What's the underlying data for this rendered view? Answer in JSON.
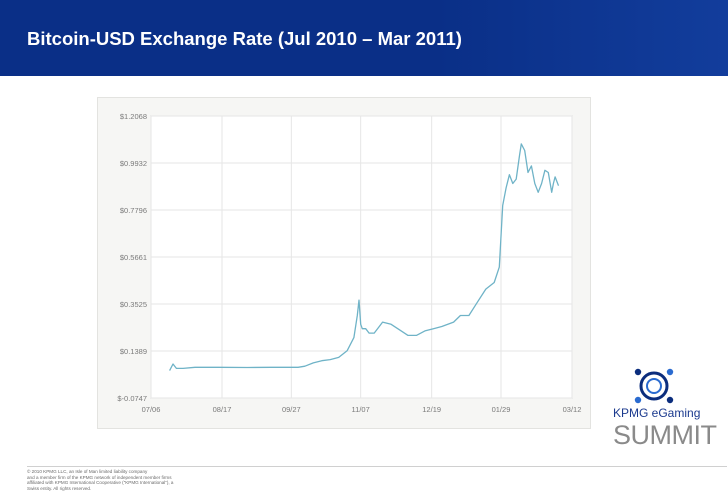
{
  "header": {
    "title": "Bitcoin-USD Exchange Rate (Jul 2010 – Mar 2011)"
  },
  "chart_data": {
    "type": "line",
    "title": "",
    "xlabel": "",
    "ylabel": "",
    "y_tick_labels": [
      "$1.2068",
      "$0.9932",
      "$0.7796",
      "$0.5661",
      "$0.3525",
      "$0.1389",
      "$-0.0747"
    ],
    "y_ticks": [
      1.2068,
      0.9932,
      0.7796,
      0.5661,
      0.3525,
      0.1389,
      -0.0747
    ],
    "x_tick_labels": [
      "07/06",
      "08/17",
      "09/27",
      "11/07",
      "12/19",
      "01/29",
      "03/12"
    ],
    "x_ticks": [
      "2010-07-06",
      "2010-08-17",
      "2010-09-27",
      "2010-11-07",
      "2010-12-19",
      "2011-01-29",
      "2011-03-12"
    ],
    "ylim": [
      -0.0747,
      1.2068
    ],
    "xlim": [
      "2010-07-06",
      "2011-03-12"
    ],
    "grid": true,
    "line_color": "#6fb3c7",
    "series": [
      {
        "x": [
          "2010-07-17",
          "2010-07-19",
          "2010-07-21",
          "2010-07-25",
          "2010-08-01",
          "2010-08-15",
          "2010-09-01",
          "2010-09-15",
          "2010-10-01",
          "2010-10-05",
          "2010-10-10",
          "2010-10-15",
          "2010-10-20",
          "2010-10-25",
          "2010-10-30",
          "2010-11-03",
          "2010-11-05",
          "2010-11-06",
          "2010-11-07",
          "2010-11-08",
          "2010-11-10",
          "2010-11-12",
          "2010-11-15",
          "2010-11-20",
          "2010-11-25",
          "2010-12-01",
          "2010-12-05",
          "2010-12-10",
          "2010-12-15",
          "2010-12-20",
          "2010-12-25",
          "2011-01-01",
          "2011-01-05",
          "2011-01-10",
          "2011-01-15",
          "2011-01-20",
          "2011-01-25",
          "2011-01-28",
          "2011-01-30",
          "2011-02-01",
          "2011-02-03",
          "2011-02-05",
          "2011-02-07",
          "2011-02-09",
          "2011-02-10",
          "2011-02-12",
          "2011-02-14",
          "2011-02-16",
          "2011-02-18",
          "2011-02-20",
          "2011-02-22",
          "2011-02-24",
          "2011-02-26",
          "2011-02-28",
          "2011-03-01",
          "2011-03-02",
          "2011-03-04"
        ],
        "values": [
          0.05,
          0.08,
          0.06,
          0.06,
          0.065,
          0.065,
          0.064,
          0.065,
          0.065,
          0.07,
          0.085,
          0.095,
          0.1,
          0.11,
          0.14,
          0.2,
          0.3,
          0.37,
          0.26,
          0.24,
          0.24,
          0.22,
          0.22,
          0.27,
          0.26,
          0.23,
          0.21,
          0.21,
          0.23,
          0.24,
          0.25,
          0.27,
          0.3,
          0.3,
          0.36,
          0.42,
          0.45,
          0.52,
          0.8,
          0.88,
          0.94,
          0.9,
          0.92,
          1.03,
          1.08,
          1.05,
          0.95,
          0.98,
          0.9,
          0.86,
          0.9,
          0.96,
          0.95,
          0.86,
          0.9,
          0.93,
          0.89
        ]
      }
    ]
  },
  "footer": {
    "line1": "© 2010 KPMG LLC, an Isle of Man limited liability company",
    "line2": "and a member firm of the KPMG network of independent member firms",
    "line3": "affiliated with KPMG International Cooperative (“KPMG International”), a",
    "line4": "Swiss entity. All rights reserved."
  },
  "logo": {
    "line1": "KPMG eGaming",
    "line2": "SUMMIT"
  }
}
